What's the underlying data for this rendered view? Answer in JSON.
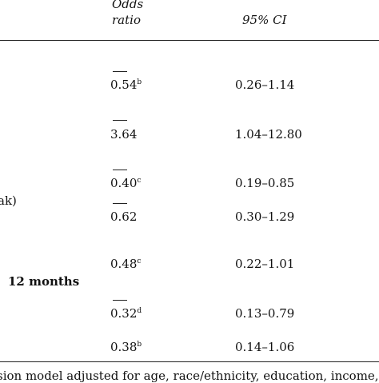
{
  "table": {
    "headers": {
      "odds_line1": "Odds",
      "odds_line2": "ratio",
      "ci": "95% CI"
    },
    "rows": [
      {
        "or": "0.54",
        "sup": "b",
        "ci": "0.26–1.14"
      },
      {
        "or": "3.64",
        "sup": "",
        "ci": "1.04–12.80"
      },
      {
        "or": "0.40",
        "sup": "c",
        "ci": "0.19–0.85"
      },
      {
        "or": "0.62",
        "sup": "",
        "ci": "0.30–1.29"
      },
      {
        "or": "0.48",
        "sup": "c",
        "ci": "0.22–1.01"
      },
      {
        "or": "0.32",
        "sup": "d",
        "ci": "0.13–0.79"
      },
      {
        "or": "0.38",
        "sup": "b",
        "ci": "0.14–1.06"
      }
    ],
    "left_fragments": {
      "ak": "ak)",
      "months": "12 months"
    },
    "footnote": "sion model adjusted for age, race/ethnicity, education, income, s"
  }
}
